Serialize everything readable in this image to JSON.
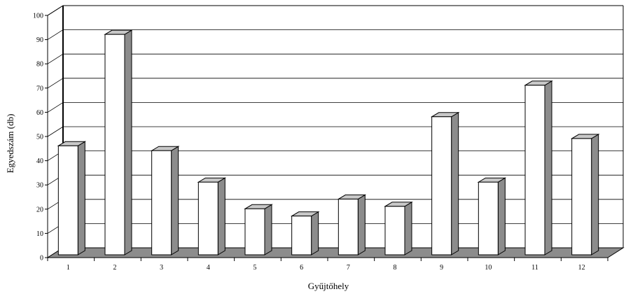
{
  "chart_data": {
    "type": "bar",
    "title": "",
    "xlabel": "Gyűjtőhely",
    "ylabel": "Egyedszám (db)",
    "categories": [
      "1",
      "2",
      "3",
      "4",
      "5",
      "6",
      "7",
      "8",
      "9",
      "10",
      "11",
      "12"
    ],
    "values": [
      45,
      91,
      43,
      30,
      19,
      16,
      23,
      20,
      57,
      30,
      70,
      48
    ],
    "ylim": [
      0,
      100
    ],
    "yticks": [
      0,
      10,
      20,
      30,
      40,
      50,
      60,
      70,
      80,
      90,
      100
    ],
    "grid": true,
    "style": "3d",
    "colors": {
      "bar_front": "#ffffff",
      "bar_side": "#8c8c8c",
      "bar_top": "#c8c8c8",
      "floor": "#8c8c8c",
      "gridline": "#000000"
    }
  }
}
